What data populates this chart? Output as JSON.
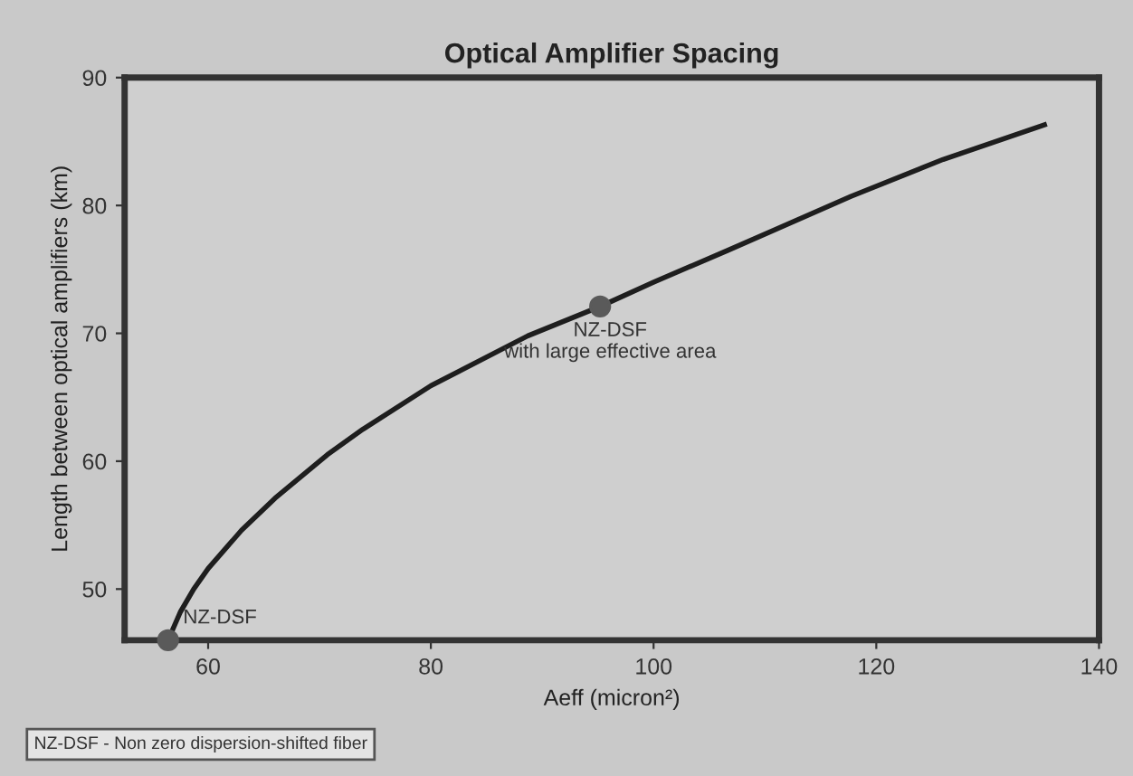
{
  "chart_data": {
    "type": "line",
    "title": "Optical Amplifier Spacing",
    "xlabel": "Aeff (micron²)",
    "ylabel": "Length between optical amplifiers (km)",
    "xlim": [
      52.5,
      140
    ],
    "ylim": [
      46,
      90
    ],
    "xticks": [
      60,
      80,
      100,
      120,
      140
    ],
    "yticks": [
      50,
      60,
      70,
      80,
      90
    ],
    "grid": false,
    "legend": false,
    "series": [
      {
        "color": "#1e1e1e",
        "marker": "none",
        "x": [
          56.4,
          57.5,
          58.7,
          60,
          63,
          66,
          70.7,
          73.9,
          80,
          88.7,
          95.2,
          100,
          106.7,
          117.7,
          126,
          135.1
        ],
        "values": [
          46,
          48.2,
          50,
          51.6,
          54.6,
          57.1,
          60.5,
          62.5,
          65.9,
          69.8,
          72.1,
          74,
          76.5,
          80.7,
          83.6,
          86.3
        ]
      },
      {
        "type": "scatter",
        "color": "#5a5a5a",
        "marker": "circle",
        "x": [
          56.4,
          95.2
        ],
        "values": [
          46,
          72.1
        ]
      }
    ],
    "annotations": [
      {
        "text": "NZ-DSF",
        "x": 56.4,
        "y": 46
      },
      {
        "text": "NZ-DSF\nwith large effective area",
        "x": 95.2,
        "y": 72.1
      },
      "NZ-DSF - Non zero dispersion-shifted fiber"
    ]
  }
}
